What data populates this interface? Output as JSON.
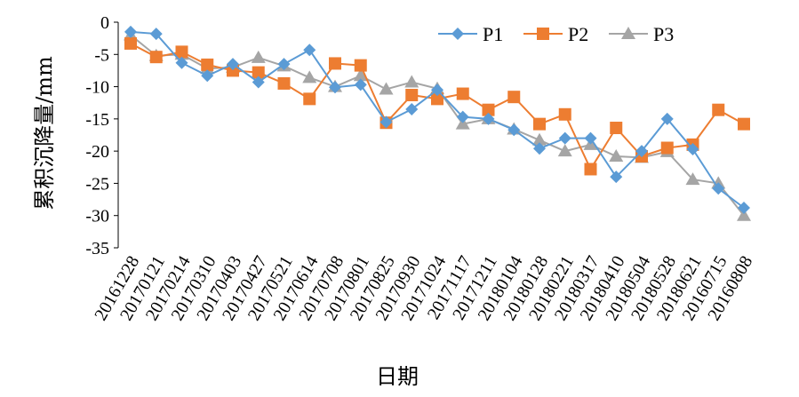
{
  "chart_data": {
    "type": "line",
    "title": "",
    "xlabel": "日期",
    "ylabel": "累积沉降量/mm",
    "ylim": [
      -35,
      0
    ],
    "yticks": [
      0,
      -5,
      -10,
      -15,
      -20,
      -25,
      -30,
      -35
    ],
    "grid": false,
    "legend_position": "top-right",
    "categories": [
      "20161228",
      "20170121",
      "20170214",
      "20170310",
      "20170403",
      "20170427",
      "20170521",
      "20170614",
      "20170708",
      "20170801",
      "20170825",
      "20170930",
      "20171024",
      "20171117",
      "20171211",
      "20180104",
      "20180128",
      "20180221",
      "20180317",
      "20180410",
      "20180504",
      "20180528",
      "20180621",
      "20160715",
      "20160808"
    ],
    "x_tick_labels": [
      "20161228",
      "20170121",
      "20170214",
      "20170310",
      "20170403",
      "20170427",
      "20170521",
      "20170614",
      "20170708",
      "20170801",
      "20170825",
      "20170930",
      "20171024",
      "20171117",
      "20171211",
      "20180104",
      "20180128",
      "20180221",
      "20180317",
      "20180410",
      "20180504",
      "20180528",
      "20180621",
      "20160715",
      "20160808"
    ],
    "n_points": 25,
    "series": [
      {
        "name": "P1",
        "color": "#5b9bd5",
        "marker": "diamond",
        "x_index": [
          0,
          1,
          2,
          3,
          4,
          5,
          6,
          7,
          8,
          9,
          10,
          11,
          12,
          13,
          14,
          15,
          16,
          17,
          18,
          19,
          20,
          21,
          22,
          23,
          24
        ],
        "values": [
          -1.5,
          -1.8,
          -6.3,
          -8.3,
          -6.5,
          -9.3,
          -6.5,
          -4.3,
          -10.1,
          -9.7,
          -15.5,
          -13.5,
          -10.5,
          -14.7,
          -15,
          -16.7,
          -19.6,
          -18,
          -18,
          -24,
          -20,
          -15,
          -19.7,
          -25.8,
          -28.8
        ]
      },
      {
        "name": "P2",
        "color": "#ed7d31",
        "marker": "square",
        "x_index": [
          0,
          1,
          2,
          3,
          4,
          5,
          6,
          7,
          8,
          9,
          10,
          11,
          12,
          13,
          14,
          15,
          16,
          17,
          18,
          19,
          20,
          21,
          22,
          23,
          24
        ],
        "values": [
          -3.3,
          -5.4,
          -4.6,
          -6.6,
          -7.5,
          -7.8,
          -9.5,
          -11.9,
          -6.4,
          -6.7,
          -15.6,
          -11.3,
          -11.9,
          -11.1,
          -13.6,
          -11.6,
          -15.8,
          -14.3,
          -22.8,
          -16.4,
          -20.8,
          -19.5,
          -19,
          -13.6,
          -15.8
        ]
      },
      {
        "name": "P3",
        "color": "#a5a5a5",
        "marker": "triangle",
        "x_index": [
          0,
          1,
          2,
          3,
          4,
          5,
          6,
          7,
          8,
          9,
          10,
          11,
          12,
          13,
          14,
          15,
          16,
          17,
          18,
          19,
          20,
          21,
          22,
          23,
          24
        ],
        "values": [
          -2,
          -5.2,
          -5,
          -7.2,
          -7,
          -5.5,
          -6.8,
          -8.6,
          -10,
          -8.3,
          -10.4,
          -9.3,
          -10.3,
          -15.8,
          -15,
          -16.6,
          -18.3,
          -20,
          -19,
          -20.8,
          -21,
          -20.1,
          -24.4,
          -25,
          -30
        ]
      }
    ]
  }
}
